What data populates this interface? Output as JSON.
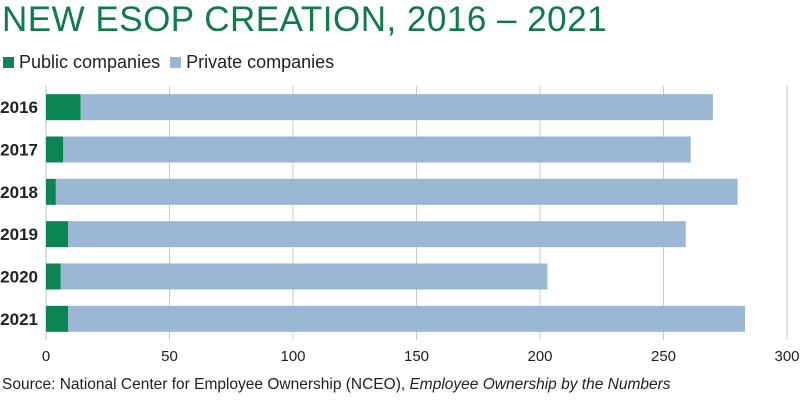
{
  "title": "NEW ESOP CREATION, 2016 – 2021",
  "source": {
    "prefix": "Source: National Center for Employee Ownership (NCEO), ",
    "italic": "Employee Ownership by the Numbers"
  },
  "colors": {
    "title": "#0f7a4a",
    "public": "#0a8553",
    "private": "#9cb6d5",
    "grid": "#c8c8c8"
  },
  "chart_data": {
    "type": "bar",
    "orientation": "horizontal",
    "stacked": true,
    "categories": [
      "2016",
      "2017",
      "2018",
      "2019",
      "2020",
      "2021"
    ],
    "series": [
      {
        "name": "Public companies",
        "values": [
          14,
          7,
          4,
          9,
          6,
          9
        ]
      },
      {
        "name": "Private companies",
        "values": [
          256,
          254,
          276,
          250,
          197,
          274
        ]
      }
    ],
    "xlim": [
      0,
      300
    ],
    "xticks": [
      0,
      50,
      100,
      150,
      200,
      250,
      300
    ],
    "grid": true,
    "legend": "top-left"
  }
}
